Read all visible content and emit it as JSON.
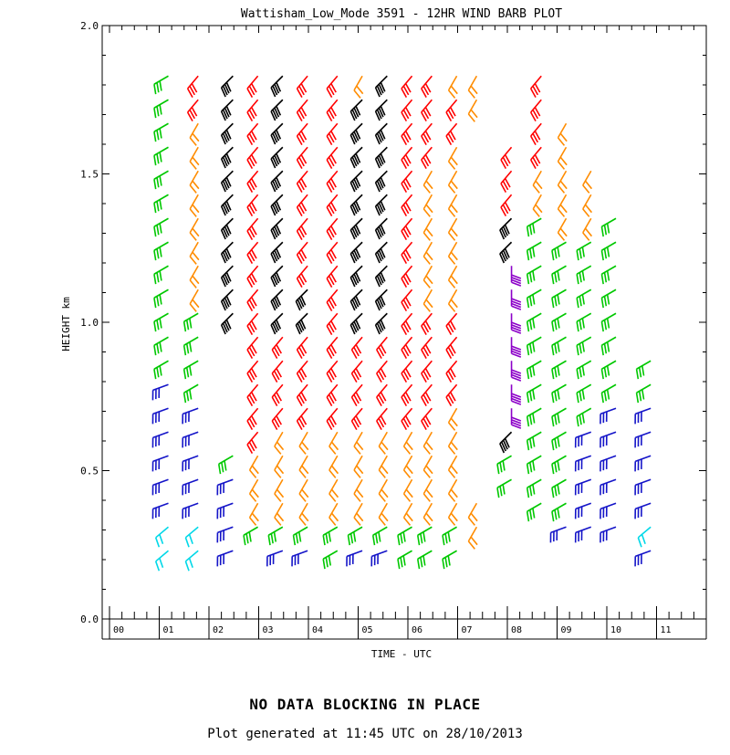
{
  "chart_data": {
    "type": "wind-barb",
    "title": "Wattisham_Low_Mode 3591 - 12HR WIND BARB PLOT",
    "xlabel": "TIME - UTC",
    "ylabel": "HEIGHT km",
    "x_tick_labels": [
      "00",
      "01",
      "02",
      "03",
      "04",
      "05",
      "06",
      "07",
      "08",
      "09",
      "10",
      "11"
    ],
    "y_tick_labels": [
      "0.0",
      "0.5",
      "1.0",
      "1.5",
      "2.0"
    ],
    "y_ticks": [
      0.0,
      0.5,
      1.0,
      1.5,
      2.0
    ],
    "xlim": [
      0,
      12
    ],
    "ylim": [
      0,
      2
    ],
    "speed_colors": {
      "cyan": "#00d8e8",
      "blue": "#1414c8",
      "green": "#00c800",
      "orange": "#ff8c00",
      "red": "#ff0000",
      "black": "#000000",
      "purple": "#8c00c8"
    },
    "color_index": {
      "c": "cyan",
      "b": "blue",
      "g": "green",
      "o": "orange",
      "r": "red",
      "k": "black",
      "p": "purple"
    },
    "profile_heights_km": [
      1.83,
      1.75,
      1.67,
      1.59,
      1.51,
      1.43,
      1.35,
      1.27,
      1.19,
      1.11,
      1.03,
      0.95,
      0.87,
      0.79,
      0.71,
      0.63,
      0.55,
      0.47,
      0.39,
      0.31,
      0.23
    ],
    "profiles": [
      {
        "time": 1.0,
        "colors": "gggggggggggggbbbbbbccc"
      },
      {
        "time": 1.6,
        "colors": "rrooooooooggggbbbbbccc"
      },
      {
        "time": 2.3,
        "colors": "kkkkkkkkkkk-----gbbbbc"
      },
      {
        "time": 2.8,
        "colors": "rrrrrrrrrrrrrrrrooog b"
      },
      {
        "time": 3.3,
        "colors": "kkkkkkkkkkkrrrroooogb"
      },
      {
        "time": 3.8,
        "colors": "rrrrrrrrrkkrrrroooogb"
      },
      {
        "time": 4.4,
        "colors": "rrrrrrrrrrrrrrroooogg"
      },
      {
        "time": 4.9,
        "colors": "okkkkkkkkkkrrrroooogb"
      },
      {
        "time": 5.4,
        "colors": "kkkkkkkkkkkrrrroooogb"
      },
      {
        "time": 5.9,
        "colors": "rrrrrrrrrrrrrrroooogg"
      },
      {
        "time": 6.3,
        "colors": "rrrroooooorrrrroooogg"
      },
      {
        "time": 6.8,
        "colors": "orrooooooorrrrooooogg"
      },
      {
        "time": 7.2,
        "colors": "oo----------------oo"
      },
      {
        "time": 7.9,
        "colors": "---rrrkkpppppppkgg"
      },
      {
        "time": 8.5,
        "colors": "rrrrooggggggggggggg"
      },
      {
        "time": 9.0,
        "colors": "--oooooggggggggggggb"
      },
      {
        "time": 9.5,
        "colors": "----oooggggggggbbbbb"
      },
      {
        "time": 10.0,
        "colors": "------ggggggggbbbbbb"
      },
      {
        "time": 10.7,
        "colors": "------------ggbbbbbcb"
      }
    ],
    "grid": false,
    "legend": "none"
  },
  "footer": {
    "notice": "NO DATA BLOCKING IN PLACE",
    "generated": "Plot generated at 11:45 UTC on 28/10/2013"
  }
}
